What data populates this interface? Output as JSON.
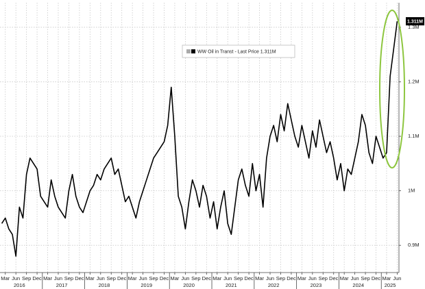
{
  "chart_data": {
    "type": "line",
    "categories": [
      null,
      "Mar",
      null,
      null,
      "Jun",
      null,
      null,
      "Sep",
      null,
      null,
      "Dec",
      null,
      null,
      "Mar",
      null,
      null,
      "Jun",
      null,
      null,
      "Sep",
      null,
      null,
      "Dec",
      null,
      null,
      "Mar",
      null,
      null,
      "Jun",
      null,
      null,
      "Sep",
      null,
      null,
      "Dec",
      null,
      null,
      "Mar",
      null,
      null,
      "Jun",
      null,
      null,
      "Sep",
      null,
      null,
      "Dec",
      null,
      null,
      "Mar",
      null,
      null,
      "Jun",
      null,
      null,
      "Sep",
      null,
      null,
      "Dec",
      null,
      null,
      "Mar",
      null,
      null,
      "Jun",
      null,
      null,
      "Sep",
      null,
      null,
      "Dec",
      null,
      null,
      "Mar",
      null,
      null,
      "Jun",
      null,
      null,
      "Sep",
      null,
      null,
      "Dec",
      null,
      null,
      "Mar",
      null,
      null,
      "Jun",
      null,
      null,
      "Sep",
      null,
      null,
      "Dec",
      null,
      null,
      "Mar",
      null,
      null,
      "Jun",
      null,
      null,
      "Sep",
      null,
      null,
      "Dec",
      null,
      null,
      "Mar",
      null,
      null,
      "Jun"
    ],
    "years": [
      null,
      null,
      null,
      null,
      null,
      "2016",
      null,
      null,
      null,
      null,
      null,
      null,
      null,
      null,
      null,
      null,
      null,
      "2017",
      null,
      null,
      null,
      null,
      null,
      null,
      null,
      null,
      null,
      null,
      null,
      "2018",
      null,
      null,
      null,
      null,
      null,
      null,
      null,
      null,
      null,
      null,
      null,
      "2019",
      null,
      null,
      null,
      null,
      null,
      null,
      null,
      null,
      null,
      null,
      null,
      "2020",
      null,
      null,
      null,
      null,
      null,
      null,
      null,
      null,
      null,
      null,
      null,
      "2021",
      null,
      null,
      null,
      null,
      null,
      null,
      null,
      null,
      null,
      null,
      null,
      "2022",
      null,
      null,
      null,
      null,
      null,
      null,
      null,
      null,
      null,
      null,
      null,
      "2023",
      null,
      null,
      null,
      null,
      null,
      null,
      null,
      null,
      null,
      null,
      null,
      "2024",
      null,
      null,
      null,
      null,
      null,
      null,
      null,
      null,
      "2025",
      null,
      null
    ],
    "series": [
      {
        "name": "WW Oil in Transt - Last Price 1.311M",
        "color": "#000000",
        "values": [
          0.94,
          0.95,
          0.93,
          0.92,
          0.88,
          0.97,
          0.95,
          1.03,
          1.06,
          1.05,
          1.04,
          0.99,
          0.98,
          0.97,
          1.02,
          0.99,
          0.97,
          0.96,
          0.95,
          1.0,
          1.03,
          0.99,
          0.97,
          0.96,
          0.98,
          1.0,
          1.01,
          1.03,
          1.02,
          1.04,
          1.05,
          1.06,
          1.03,
          1.04,
          1.01,
          0.98,
          0.99,
          0.97,
          0.95,
          0.98,
          1.0,
          1.02,
          1.04,
          1.06,
          1.07,
          1.08,
          1.09,
          1.12,
          1.19,
          1.1,
          0.99,
          0.97,
          0.93,
          0.98,
          1.02,
          1.0,
          0.97,
          1.01,
          0.99,
          0.95,
          0.98,
          0.93,
          0.97,
          1.0,
          0.94,
          0.92,
          0.97,
          1.02,
          1.04,
          1.01,
          0.99,
          1.05,
          1.0,
          1.03,
          0.97,
          1.06,
          1.1,
          1.12,
          1.09,
          1.14,
          1.11,
          1.16,
          1.13,
          1.1,
          1.08,
          1.12,
          1.09,
          1.06,
          1.11,
          1.08,
          1.13,
          1.1,
          1.07,
          1.09,
          1.06,
          1.02,
          1.05,
          1.0,
          1.04,
          1.03,
          1.06,
          1.09,
          1.14,
          1.12,
          1.07,
          1.05,
          1.1,
          1.08,
          1.06,
          1.07,
          1.21,
          1.26,
          1.311
        ],
        "value_labels": [
          null,
          null,
          null,
          null,
          null,
          null,
          null,
          null,
          null,
          null,
          null,
          null,
          null,
          null,
          null,
          null,
          null,
          null,
          null,
          null,
          null,
          null,
          null,
          null,
          null,
          null,
          null,
          null,
          null,
          null,
          null,
          null,
          null,
          null,
          null,
          null,
          null,
          null,
          null,
          null,
          null,
          null,
          null,
          null,
          null,
          null,
          null,
          null,
          null,
          null,
          null,
          null,
          null,
          null,
          null,
          null,
          null,
          null,
          null,
          null,
          null,
          null,
          null,
          null,
          null,
          null,
          null,
          null,
          null,
          null,
          null,
          null,
          null,
          null,
          null,
          null,
          null,
          null,
          null,
          null,
          null,
          null,
          null,
          null,
          null,
          null,
          null,
          null,
          null,
          null,
          null,
          null,
          null,
          null,
          null,
          null,
          null,
          null,
          null,
          null,
          null,
          null,
          null,
          null,
          null,
          null,
          null,
          null,
          null,
          null,
          null,
          null,
          "1.311M"
        ]
      }
    ],
    "ylim": [
      0.85,
      1.345
    ],
    "yticks": [
      {
        "value": 0.9,
        "label": "0.9M"
      },
      {
        "value": 1,
        "label": "1M"
      },
      {
        "value": 1.1,
        "label": "1.1M"
      },
      {
        "value": 1.2,
        "label": "1.2M"
      },
      {
        "value": 1.3,
        "label": "1.3M"
      }
    ],
    "grid": true
  }
}
